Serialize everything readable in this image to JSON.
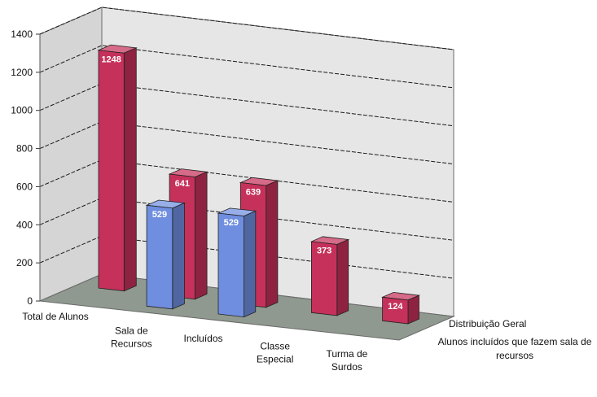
{
  "chart_data": {
    "type": "bar",
    "style": "3d-clustered-depth",
    "categories": [
      [
        "Total de Alunos"
      ],
      [
        "Sala de",
        "Recursos"
      ],
      [
        "Incluídos"
      ],
      [
        "Classe",
        "Especial"
      ],
      [
        "Turma de",
        "Surdos"
      ]
    ],
    "series": [
      {
        "name": "Distribuição Geral",
        "color": "#c5315a",
        "values": [
          1248,
          641,
          639,
          373,
          124
        ]
      },
      {
        "name": [
          "Alunos incluídos que fazem sala de",
          "recursos"
        ],
        "color": "#6f8ee0",
        "values": [
          null,
          529,
          529,
          null,
          null
        ]
      }
    ],
    "yticks": [
      "0",
      "200",
      "400",
      "600",
      "800",
      "1000",
      "1200",
      "1400"
    ],
    "ylim": [
      0,
      1400
    ],
    "grid": true,
    "legend": "series names shown as depth-axis labels at right",
    "colors": {
      "wall": "#e6e6e6",
      "floor": "#8f998f",
      "grid": "#1a1a1a"
    }
  }
}
